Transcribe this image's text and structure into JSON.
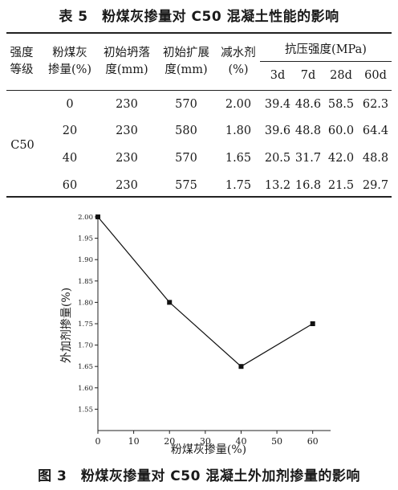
{
  "table": {
    "title": "表 5　粉煤灰掺量对 C50 混凝土性能的影响",
    "headers": {
      "grade_l1": "强度",
      "grade_l2": "等级",
      "ash_l1": "粉煤灰",
      "ash_l2": "掺量(%)",
      "slump_l1": "初始坍落",
      "slump_l2": "度(mm)",
      "spread_l1": "初始扩展",
      "spread_l2": "度(mm)",
      "reducer_l1": "减水剂",
      "reducer_l2": "(%)",
      "strength_group": "抗压强度(MPa)",
      "d3": "3d",
      "d7": "7d",
      "d28": "28d",
      "d60": "60d"
    },
    "grade": "C50",
    "rows": [
      {
        "ash": "0",
        "slump": "230",
        "spread": "570",
        "reducer": "2.00",
        "d3": "39.4",
        "d7": "48.6",
        "d28": "58.5",
        "d60": "62.3"
      },
      {
        "ash": "20",
        "slump": "230",
        "spread": "580",
        "reducer": "1.80",
        "d3": "39.6",
        "d7": "48.8",
        "d28": "60.0",
        "d60": "64.4"
      },
      {
        "ash": "40",
        "slump": "230",
        "spread": "570",
        "reducer": "1.65",
        "d3": "20.5",
        "d7": "31.7",
        "d28": "42.0",
        "d60": "48.8"
      },
      {
        "ash": "60",
        "slump": "230",
        "spread": "575",
        "reducer": "1.75",
        "d3": "13.2",
        "d7": "16.8",
        "d28": "21.5",
        "d60": "29.7"
      }
    ]
  },
  "chart_data": {
    "type": "line",
    "xlabel": "粉煤灰掺量(%)",
    "ylabel": "外加剂掺量(%)",
    "xlim": [
      0,
      65
    ],
    "ylim": [
      1.5,
      2.0
    ],
    "xticks": [
      "0",
      "10",
      "20",
      "30",
      "40",
      "50",
      "60"
    ],
    "yticks": [
      "1.55",
      "1.60",
      "1.65",
      "1.70",
      "1.75",
      "1.80",
      "1.85",
      "1.90",
      "1.95",
      "2.00"
    ],
    "x": [
      0,
      20,
      40,
      60
    ],
    "y": [
      2.0,
      1.8,
      1.65,
      1.75
    ],
    "marker": "square",
    "grid": false
  },
  "figure": {
    "caption": "图 3　粉煤灰掺量对 C50 混凝土外加剂掺量的影响"
  }
}
